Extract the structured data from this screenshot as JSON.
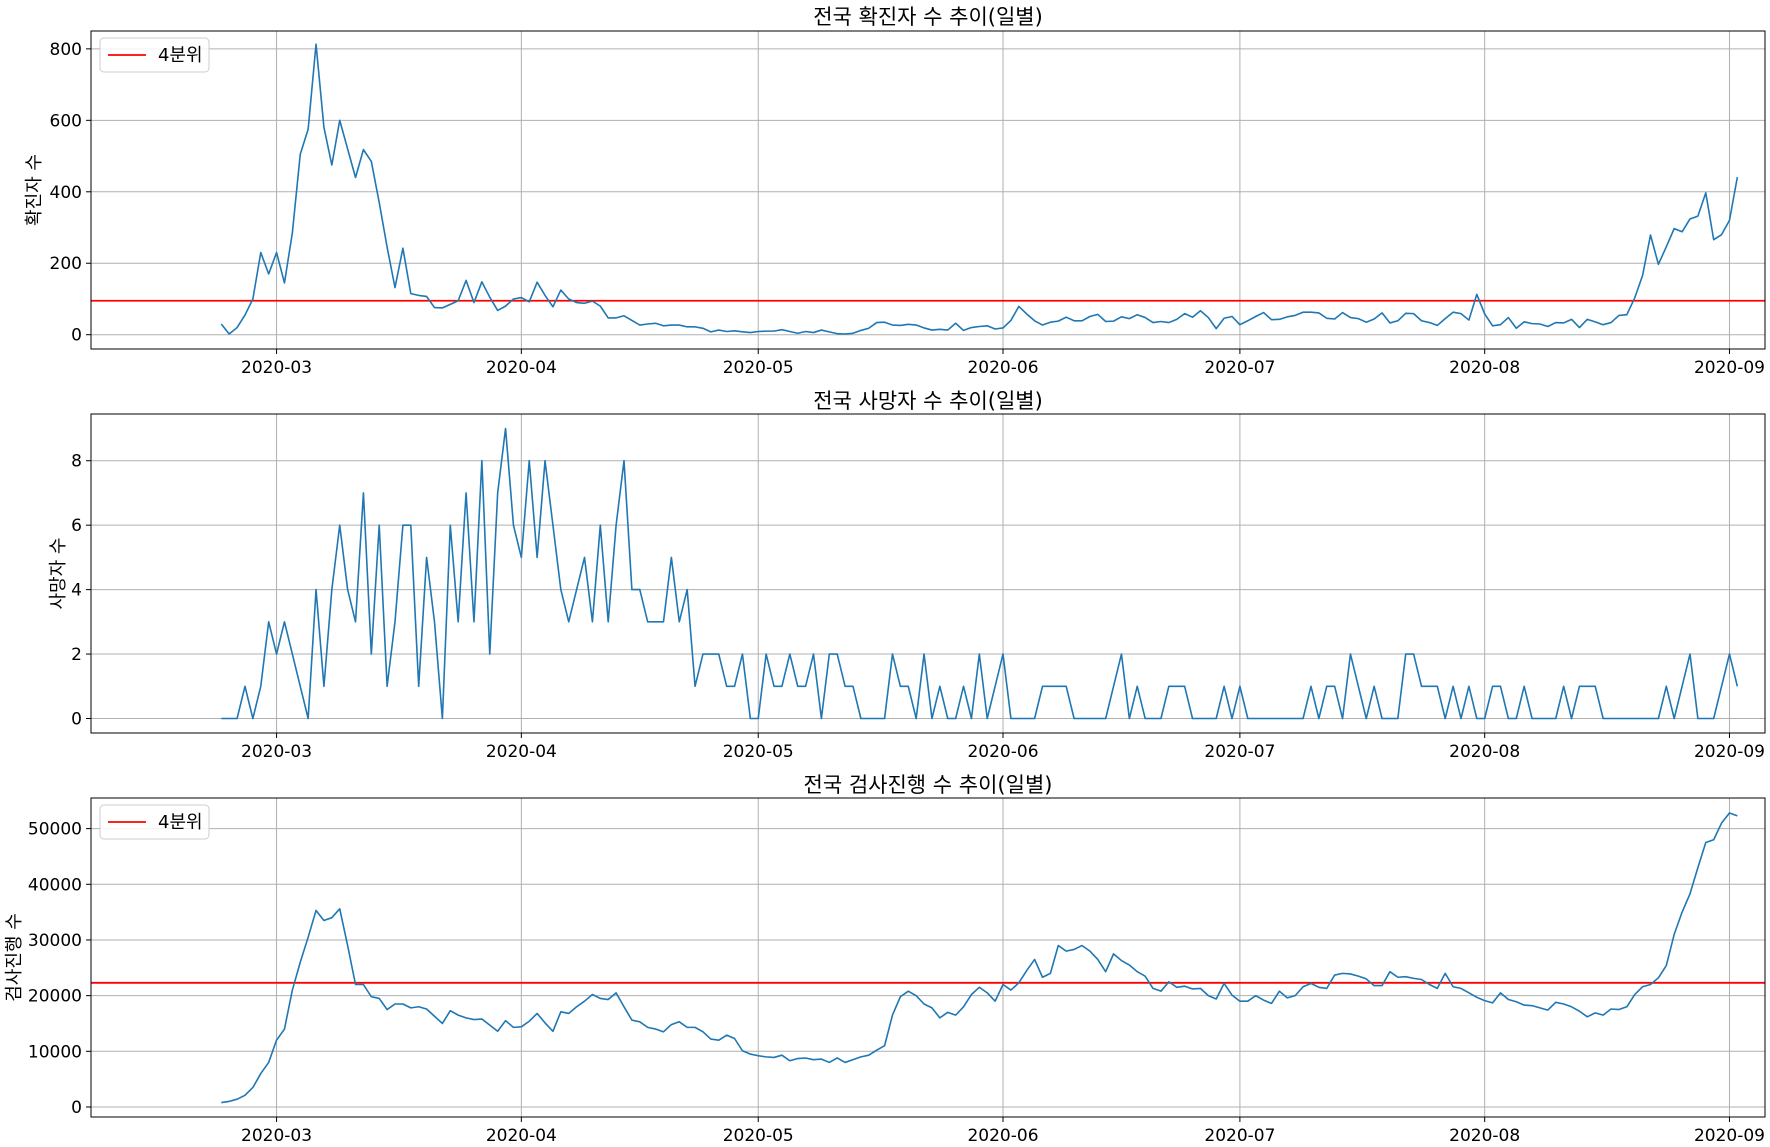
{
  "chart_data": [
    {
      "type": "line",
      "title": "전국 확진자 수 추이(일별)",
      "ylabel": "확진자 수",
      "xlabel": "",
      "x_ticks": [
        "2020-03",
        "2020-04",
        "2020-05",
        "2020-06",
        "2020-07",
        "2020-08",
        "2020-09"
      ],
      "y_ticks": [
        0,
        200,
        400,
        600,
        800
      ],
      "ylim": [
        -40,
        850
      ],
      "reference_line": {
        "label": "4분위",
        "value": 95,
        "color": "#ff0000"
      },
      "legend": "top-left",
      "series": [
        {
          "name": "확진자 수",
          "color": "#1f77b4",
          "start_date": "2020-02-18",
          "values": [
            30,
            2,
            20,
            55,
            100,
            230,
            170,
            230,
            145,
            285,
            505,
            575,
            813,
            580,
            475,
            600,
            520,
            440,
            518,
            485,
            370,
            245,
            132,
            242,
            115,
            110,
            107,
            76,
            75,
            85,
            95,
            152,
            90,
            148,
            105,
            68,
            80,
            100,
            104,
            92,
            147,
            110,
            78,
            125,
            100,
            90,
            88,
            94,
            80,
            47,
            47,
            53,
            40,
            27,
            30,
            32,
            25,
            27,
            27,
            22,
            22,
            18,
            8,
            13,
            9,
            11,
            8,
            6,
            9,
            10,
            10,
            14,
            9,
            4,
            9,
            6,
            13,
            8,
            3,
            2,
            4,
            12,
            18,
            34,
            35,
            27,
            26,
            29,
            27,
            19,
            13,
            15,
            13,
            32,
            12,
            20,
            23,
            25,
            16,
            19,
            40,
            79,
            58,
            39,
            27,
            35,
            38,
            49,
            39,
            39,
            51,
            57,
            37,
            38,
            50,
            45,
            56,
            48,
            34,
            37,
            34,
            43,
            59,
            49,
            67,
            48,
            17,
            46,
            51,
            28,
            39,
            51,
            62,
            42,
            43,
            50,
            54,
            63,
            63,
            61,
            46,
            44,
            62,
            48,
            45,
            35,
            44,
            61,
            33,
            39,
            60,
            59,
            39,
            34,
            26,
            45,
            63,
            59,
            41,
            113,
            58,
            25,
            28,
            48,
            18,
            36,
            31,
            30,
            23,
            34,
            33,
            43,
            20,
            43,
            36,
            28,
            34,
            54,
            56,
            103,
            166,
            279,
            197,
            246,
            297,
            288,
            324,
            332,
            397,
            266,
            280,
            320,
            441
          ]
        }
      ]
    },
    {
      "type": "line",
      "title": "전국 사망자 수 추이(일별)",
      "ylabel": "사망자 수",
      "xlabel": "",
      "x_ticks": [
        "2020-03",
        "2020-04",
        "2020-05",
        "2020-06",
        "2020-07",
        "2020-08",
        "2020-09"
      ],
      "y_ticks": [
        0,
        2,
        4,
        6,
        8
      ],
      "ylim": [
        -0.45,
        9.45
      ],
      "series": [
        {
          "name": "사망자 수",
          "color": "#1f77b4",
          "start_date": "2020-02-18",
          "values": [
            0,
            0,
            0,
            1,
            0,
            1,
            3,
            2,
            3,
            2,
            1,
            0,
            4,
            1,
            4,
            6,
            4,
            3,
            7,
            2,
            6,
            1,
            3,
            6,
            6,
            1,
            5,
            3,
            0,
            6,
            3,
            7,
            3,
            8,
            2,
            7,
            9,
            6,
            5,
            8,
            5,
            8,
            6,
            4,
            3,
            4,
            5,
            3,
            6,
            3,
            6,
            8,
            4,
            4,
            3,
            3,
            3,
            5,
            3,
            4,
            1,
            2,
            2,
            2,
            1,
            1,
            2,
            0,
            0,
            2,
            1,
            1,
            2,
            1,
            1,
            2,
            0,
            2,
            2,
            1,
            1,
            0,
            0,
            0,
            0,
            2,
            1,
            1,
            0,
            2,
            0,
            1,
            0,
            0,
            1,
            0,
            2,
            0,
            1,
            2,
            0,
            0,
            0,
            0,
            1,
            1,
            1,
            1,
            0,
            0,
            0,
            0,
            0,
            1,
            2,
            0,
            1,
            0,
            0,
            0,
            1,
            1,
            1,
            0,
            0,
            0,
            0,
            1,
            0,
            1,
            0,
            0,
            0,
            0,
            0,
            0,
            0,
            0,
            1,
            0,
            1,
            1,
            0,
            2,
            1,
            0,
            1,
            0,
            0,
            0,
            2,
            2,
            1,
            1,
            1,
            0,
            1,
            0,
            1,
            0,
            0,
            1,
            1,
            0,
            0,
            1,
            0,
            0,
            0,
            0,
            1,
            0,
            1,
            1,
            1,
            0,
            0,
            0,
            0,
            0,
            0,
            0,
            0,
            1,
            0,
            1,
            2,
            0,
            0,
            0,
            1,
            2,
            1
          ]
        }
      ]
    },
    {
      "type": "line",
      "title": "전국 검사진행 수 추이(일별)",
      "ylabel": "검사진행 수",
      "xlabel": "",
      "x_ticks": [
        "2020-03",
        "2020-04",
        "2020-05",
        "2020-06",
        "2020-07",
        "2020-08",
        "2020-09"
      ],
      "y_ticks": [
        0,
        10000,
        20000,
        30000,
        40000,
        50000
      ],
      "ylim": [
        -1800,
        55500
      ],
      "reference_line": {
        "label": "4분위",
        "value": 22300,
        "color": "#ff0000"
      },
      "legend": "top-left",
      "series": [
        {
          "name": "검사진행 수",
          "color": "#1f77b4",
          "start_date": "2020-02-18",
          "values": [
            800,
            1000,
            1400,
            2100,
            3500,
            6000,
            8000,
            12000,
            14000,
            21000,
            26000,
            30500,
            35300,
            33500,
            34000,
            35600,
            29000,
            22000,
            22000,
            19800,
            19500,
            17500,
            18500,
            18500,
            17800,
            18000,
            17600,
            16300,
            15000,
            17300,
            16500,
            16000,
            15700,
            15800,
            14700,
            13600,
            15500,
            14300,
            14400,
            15400,
            16800,
            15100,
            13600,
            17100,
            16800,
            18000,
            19000,
            20200,
            19500,
            19300,
            20500,
            18000,
            15600,
            15300,
            14300,
            14000,
            13500,
            14800,
            15300,
            14300,
            14300,
            13500,
            12200,
            12000,
            12900,
            12300,
            10100,
            9500,
            9200,
            9000,
            8900,
            9300,
            8300,
            8700,
            8800,
            8500,
            8600,
            8000,
            8800,
            8000,
            8500,
            9000,
            9300,
            10200,
            11000,
            16500,
            19800,
            20800,
            20000,
            18500,
            17800,
            16000,
            17000,
            16500,
            18000,
            20200,
            21500,
            20500,
            19000,
            22000,
            21000,
            22300,
            24500,
            26500,
            23300,
            24000,
            29000,
            28000,
            28300,
            29000,
            28000,
            26500,
            24300,
            27500,
            26300,
            25500,
            24300,
            23500,
            21300,
            20800,
            22500,
            21500,
            21700,
            21200,
            21300,
            20000,
            19400,
            22200,
            20100,
            19000,
            19000,
            20000,
            19200,
            18600,
            20800,
            19600,
            20000,
            21600,
            22200,
            21500,
            21300,
            23700,
            24000,
            23900,
            23500,
            23000,
            21800,
            21800,
            24300,
            23300,
            23400,
            23100,
            22900,
            22000,
            21300,
            24000,
            21600,
            21300,
            20500,
            19700,
            19100,
            18700,
            20500,
            19300,
            18900,
            18300,
            18200,
            17800,
            17400,
            18800,
            18500,
            18000,
            17200,
            16200,
            16900,
            16500,
            17600,
            17500,
            18000,
            20200,
            21600,
            22000,
            23200,
            25400,
            31000,
            35000,
            38300,
            43000,
            47500,
            48000,
            51000,
            52800,
            52300
          ]
        }
      ]
    }
  ]
}
